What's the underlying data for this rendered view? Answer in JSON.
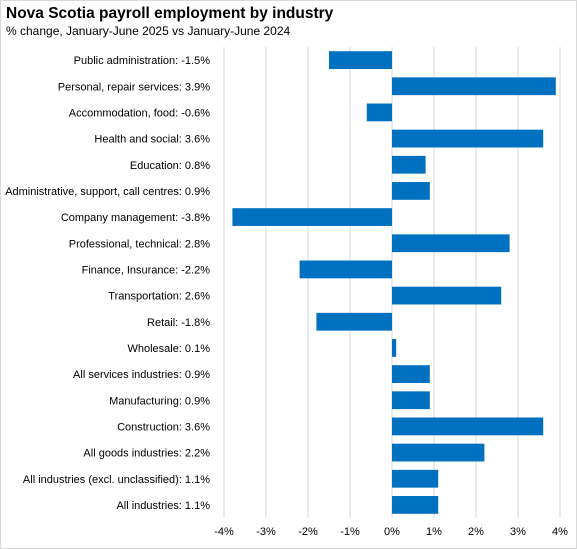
{
  "chart_data": {
    "type": "bar",
    "orientation": "horizontal",
    "title": "Nova Scotia payroll employment by industry",
    "subtitle": "% change, January-June 2025 vs January-June 2024",
    "categories": [
      "Public administration: -1.5%",
      "Personal, repair services: 3.9%",
      "Accommodation, food: -0.6%",
      "Health and social: 3.6%",
      "Education: 0.8%",
      "Administrative, support, call centres: 0.9%",
      "Company management: -3.8%",
      "Professional, technical: 2.8%",
      "Finance, Insurance: -2.2%",
      "Transportation: 2.6%",
      "Retail: -1.8%",
      "Wholesale: 0.1%",
      "All services industries: 0.9%",
      "Manufacturing: 0.9%",
      "Construction: 3.6%",
      "All goods industries: 2.2%",
      "All industries (excl. unclassified): 1.1%",
      "All industries: 1.1%"
    ],
    "values": [
      -1.5,
      3.9,
      -0.6,
      3.6,
      0.8,
      0.9,
      -3.8,
      2.8,
      -2.2,
      2.6,
      -1.8,
      0.1,
      0.9,
      0.9,
      3.6,
      2.2,
      1.1,
      1.1
    ],
    "xlim": [
      -4,
      4
    ],
    "xticks": [
      -4,
      -3,
      -2,
      -1,
      0,
      1,
      2,
      3,
      4
    ],
    "xtick_labels": [
      "-4%",
      "-3%",
      "-2%",
      "-1%",
      "0%",
      "1%",
      "2%",
      "3%",
      "4%"
    ],
    "grid": "vertical",
    "bar_color": "#0070c0",
    "grid_color": "#d9d9d9",
    "legend": "none"
  }
}
